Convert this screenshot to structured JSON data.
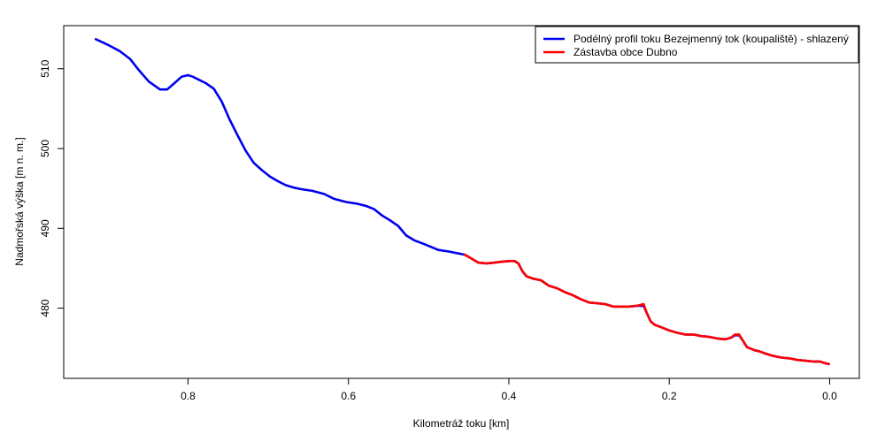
{
  "chart_data": {
    "type": "line",
    "title": "",
    "xlabel": "Kilometráž toku [km]",
    "ylabel": "Nadmořská výška [m n. m.]",
    "xlim": [
      0.955,
      -0.037
    ],
    "ylim": [
      471.2,
      515.4
    ],
    "x_reversed": true,
    "x_ticks": [
      0.8,
      0.6,
      0.4,
      0.2,
      0.0
    ],
    "x_tick_labels": [
      "0.8",
      "0.6",
      "0.4",
      "0.2",
      "0.0"
    ],
    "y_ticks": [
      480,
      490,
      500,
      510
    ],
    "y_tick_labels": [
      "480",
      "490",
      "500",
      "510"
    ],
    "grid": false,
    "legend_position": "top-right",
    "series": [
      {
        "name": "Podélný profil toku Bezejmenný tok (koupaliště) - shlazený",
        "color": "#0000ee",
        "x": [
          0.915,
          0.898,
          0.885,
          0.872,
          0.862,
          0.849,
          0.835,
          0.826,
          0.818,
          0.808,
          0.8,
          0.794,
          0.786,
          0.778,
          0.768,
          0.758,
          0.748,
          0.738,
          0.728,
          0.718,
          0.708,
          0.698,
          0.688,
          0.678,
          0.668,
          0.658,
          0.645,
          0.63,
          0.618,
          0.603,
          0.59,
          0.578,
          0.568,
          0.558,
          0.548,
          0.538,
          0.528,
          0.518,
          0.505,
          0.488,
          0.475,
          0.465,
          0.455,
          0.448,
          0.438,
          0.428,
          0.418,
          0.41,
          0.4,
          0.393,
          0.388,
          0.383,
          0.378,
          0.37,
          0.36,
          0.35,
          0.34,
          0.33,
          0.32,
          0.31,
          0.3,
          0.29,
          0.28,
          0.27,
          0.26,
          0.25,
          0.24,
          0.232,
          0.228,
          0.223,
          0.218,
          0.21,
          0.2,
          0.19,
          0.18,
          0.17,
          0.16,
          0.15,
          0.14,
          0.13,
          0.123,
          0.118,
          0.113,
          0.108,
          0.103,
          0.098,
          0.093,
          0.088,
          0.08,
          0.07,
          0.06,
          0.05,
          0.04,
          0.03,
          0.02,
          0.012,
          0.006,
          0.001
        ],
        "y": [
          513.7,
          512.9,
          512.2,
          511.2,
          509.9,
          508.4,
          507.4,
          507.4,
          508.1,
          509.0,
          509.2,
          509.0,
          508.6,
          508.2,
          507.5,
          505.9,
          503.6,
          501.6,
          499.7,
          498.2,
          497.3,
          496.5,
          495.9,
          495.4,
          495.1,
          494.9,
          494.7,
          494.3,
          493.7,
          493.3,
          493.1,
          492.8,
          492.4,
          491.6,
          491.0,
          490.3,
          489.1,
          488.5,
          488.0,
          487.3,
          487.1,
          486.9,
          486.7,
          486.3,
          485.7,
          485.6,
          485.7,
          485.8,
          485.9,
          485.9,
          485.6,
          484.6,
          484.0,
          483.7,
          483.5,
          482.8,
          482.5,
          482.0,
          481.6,
          481.1,
          480.7,
          480.6,
          480.5,
          480.2,
          480.2,
          480.2,
          480.3,
          480.3,
          479.4,
          478.3,
          477.9,
          477.6,
          477.2,
          476.9,
          476.7,
          476.7,
          476.5,
          476.4,
          476.2,
          476.1,
          476.3,
          476.6,
          476.6,
          475.9,
          475.1,
          474.9,
          474.7,
          474.6,
          474.3,
          474.0,
          473.8,
          473.7,
          473.5,
          473.4,
          473.3,
          473.3,
          473.1,
          473.0
        ]
      },
      {
        "name": "Zástavba obce Dubno",
        "color": "#ff0000",
        "x": [
          0.455,
          0.448,
          0.438,
          0.428,
          0.418,
          0.41,
          0.4,
          0.393,
          0.388,
          0.383,
          0.378,
          0.37,
          0.36,
          0.35,
          0.34,
          0.33,
          0.32,
          0.31,
          0.3,
          0.29,
          0.28,
          0.27,
          0.26,
          0.25,
          0.24,
          0.232,
          0.228,
          0.223,
          0.218,
          0.21,
          0.2,
          0.19,
          0.18,
          0.17,
          0.16,
          0.15,
          0.14,
          0.13,
          0.123,
          0.118,
          0.113,
          0.108,
          0.103,
          0.098,
          0.093,
          0.088,
          0.08,
          0.07,
          0.06,
          0.05,
          0.04,
          0.03,
          0.02,
          0.012,
          0.006,
          0.001
        ],
        "y": [
          486.7,
          486.3,
          485.7,
          485.6,
          485.7,
          485.8,
          485.9,
          485.9,
          485.6,
          484.6,
          484.0,
          483.7,
          483.5,
          482.8,
          482.5,
          482.0,
          481.6,
          481.1,
          480.7,
          480.6,
          480.5,
          480.2,
          480.2,
          480.2,
          480.3,
          480.5,
          479.4,
          478.3,
          477.9,
          477.6,
          477.2,
          476.9,
          476.7,
          476.7,
          476.5,
          476.4,
          476.2,
          476.1,
          476.3,
          476.7,
          476.7,
          475.9,
          475.1,
          474.9,
          474.7,
          474.6,
          474.3,
          474.0,
          473.8,
          473.7,
          473.5,
          473.4,
          473.3,
          473.3,
          473.1,
          473.0
        ]
      }
    ]
  }
}
